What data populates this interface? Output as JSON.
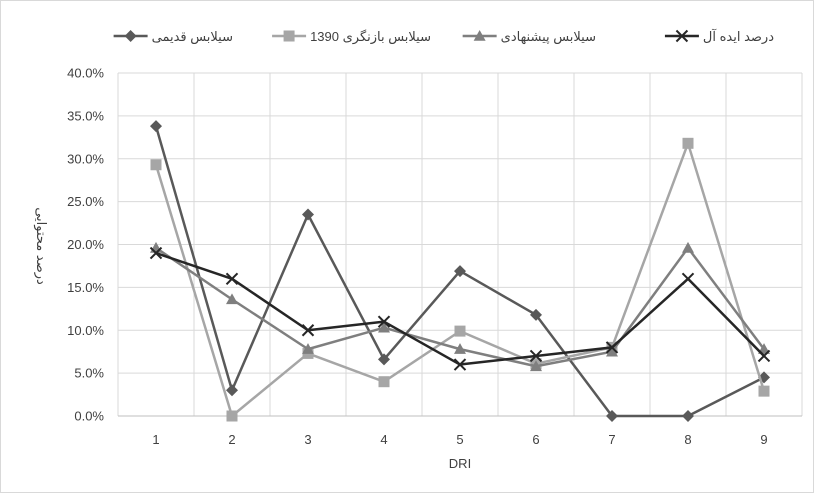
{
  "chart_data": {
    "type": "line",
    "xlabel": "DRI",
    "ylabel": "درصد محتوایی",
    "ylim": [
      0,
      40
    ],
    "y_ticks": [
      "0.0%",
      "5.0%",
      "10.0%",
      "15.0%",
      "20.0%",
      "25.0%",
      "30.0%",
      "35.0%",
      "40.0%"
    ],
    "categories": [
      "1",
      "2",
      "3",
      "4",
      "5",
      "6",
      "7",
      "8",
      "9"
    ],
    "grid": true,
    "legend_position": "top",
    "series": [
      {
        "name": "سیلابس قدیمی",
        "color": "#595959",
        "marker": "diamond",
        "values": [
          33.8,
          3.0,
          23.5,
          6.6,
          16.9,
          11.8,
          0.0,
          0.0,
          4.5
        ]
      },
      {
        "name": "سیلابس بازنگری 1390",
        "color": "#a6a6a6",
        "marker": "square",
        "values": [
          29.3,
          0.0,
          7.3,
          4.0,
          9.9,
          6.1,
          8.0,
          31.8,
          2.9
        ]
      },
      {
        "name": "سیلابس پیشنهادی",
        "color": "#7f7f7f",
        "marker": "triangle",
        "values": [
          19.6,
          13.6,
          7.8,
          10.3,
          7.8,
          5.8,
          7.5,
          19.6,
          7.8
        ]
      },
      {
        "name": "درصد ایده آل",
        "color": "#262626",
        "marker": "x",
        "values": [
          19.0,
          16.0,
          10.0,
          11.0,
          6.0,
          7.0,
          8.0,
          16.0,
          7.0
        ]
      }
    ]
  }
}
